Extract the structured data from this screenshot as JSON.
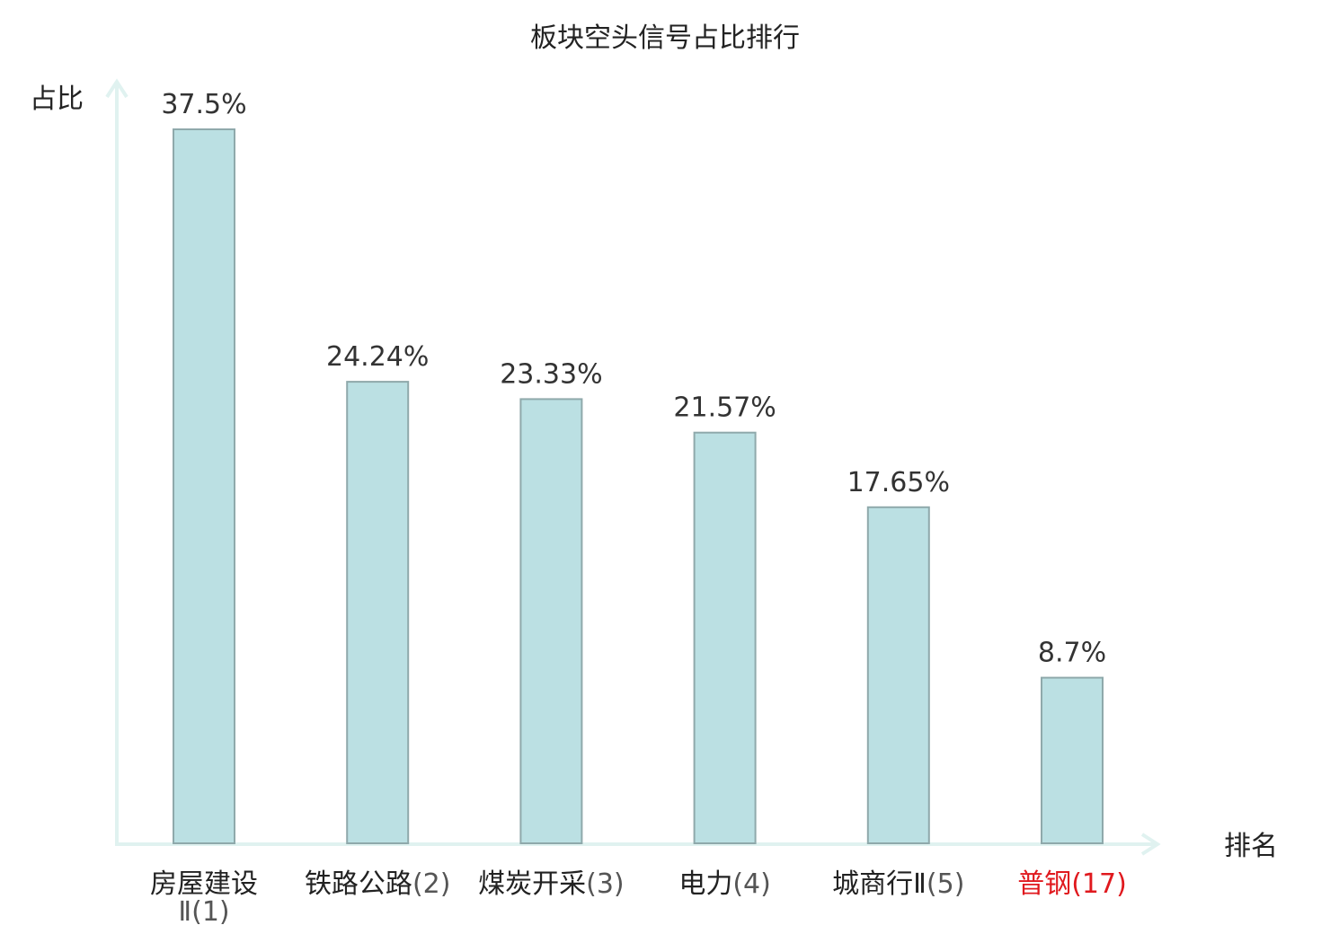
{
  "chart_data": {
    "type": "bar",
    "title": "板块空头信号占比排行",
    "xlabel": "排名",
    "ylabel": "占比",
    "categories": [
      {
        "name": "房屋建设Ⅱ",
        "rank": "(1)",
        "highlight": false
      },
      {
        "name": "铁路公路",
        "rank": "(2)",
        "highlight": false
      },
      {
        "name": "煤炭开采",
        "rank": "(3)",
        "highlight": false
      },
      {
        "name": "电力",
        "rank": "(4)",
        "highlight": false
      },
      {
        "name": "城商行Ⅱ",
        "rank": "(5)",
        "highlight": false
      },
      {
        "name": "普钢",
        "rank": "(17)",
        "highlight": true
      }
    ],
    "values": [
      37.5,
      24.24,
      23.33,
      21.57,
      17.65,
      8.7
    ],
    "value_labels": [
      "37.5%",
      "24.24%",
      "23.33%",
      "21.57%",
      "17.65%",
      "8.7%"
    ],
    "ylim": [
      0,
      37.5
    ],
    "grid": false,
    "colors": {
      "bar_fill": "#bbe0e3",
      "bar_stroke": "#8fa9ab",
      "axis": "#e0f2f0",
      "highlight": "#e0191e",
      "text": "#222222"
    }
  }
}
